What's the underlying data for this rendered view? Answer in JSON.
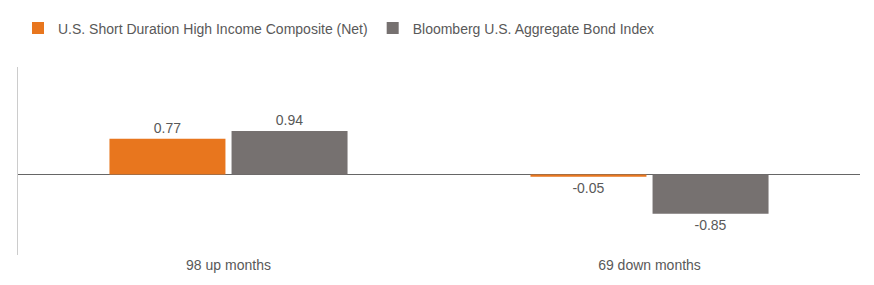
{
  "chart_data": {
    "type": "bar",
    "categories": [
      "98 up months",
      "69 down months"
    ],
    "series": [
      {
        "name": "U.S. Short Duration High Income Composite (Net)",
        "color": "#e8761e",
        "values": [
          0.77,
          -0.05
        ]
      },
      {
        "name": "Bloomberg U.S. Aggregate Bond Index",
        "color": "#767170",
        "values": [
          0.94,
          -0.85
        ]
      }
    ],
    "ylim": [
      -1.74,
      2.32
    ],
    "yticks": [
      0
    ],
    "grid": false,
    "data_labels": true,
    "tick_labels": "x",
    "legend": "top-left"
  }
}
